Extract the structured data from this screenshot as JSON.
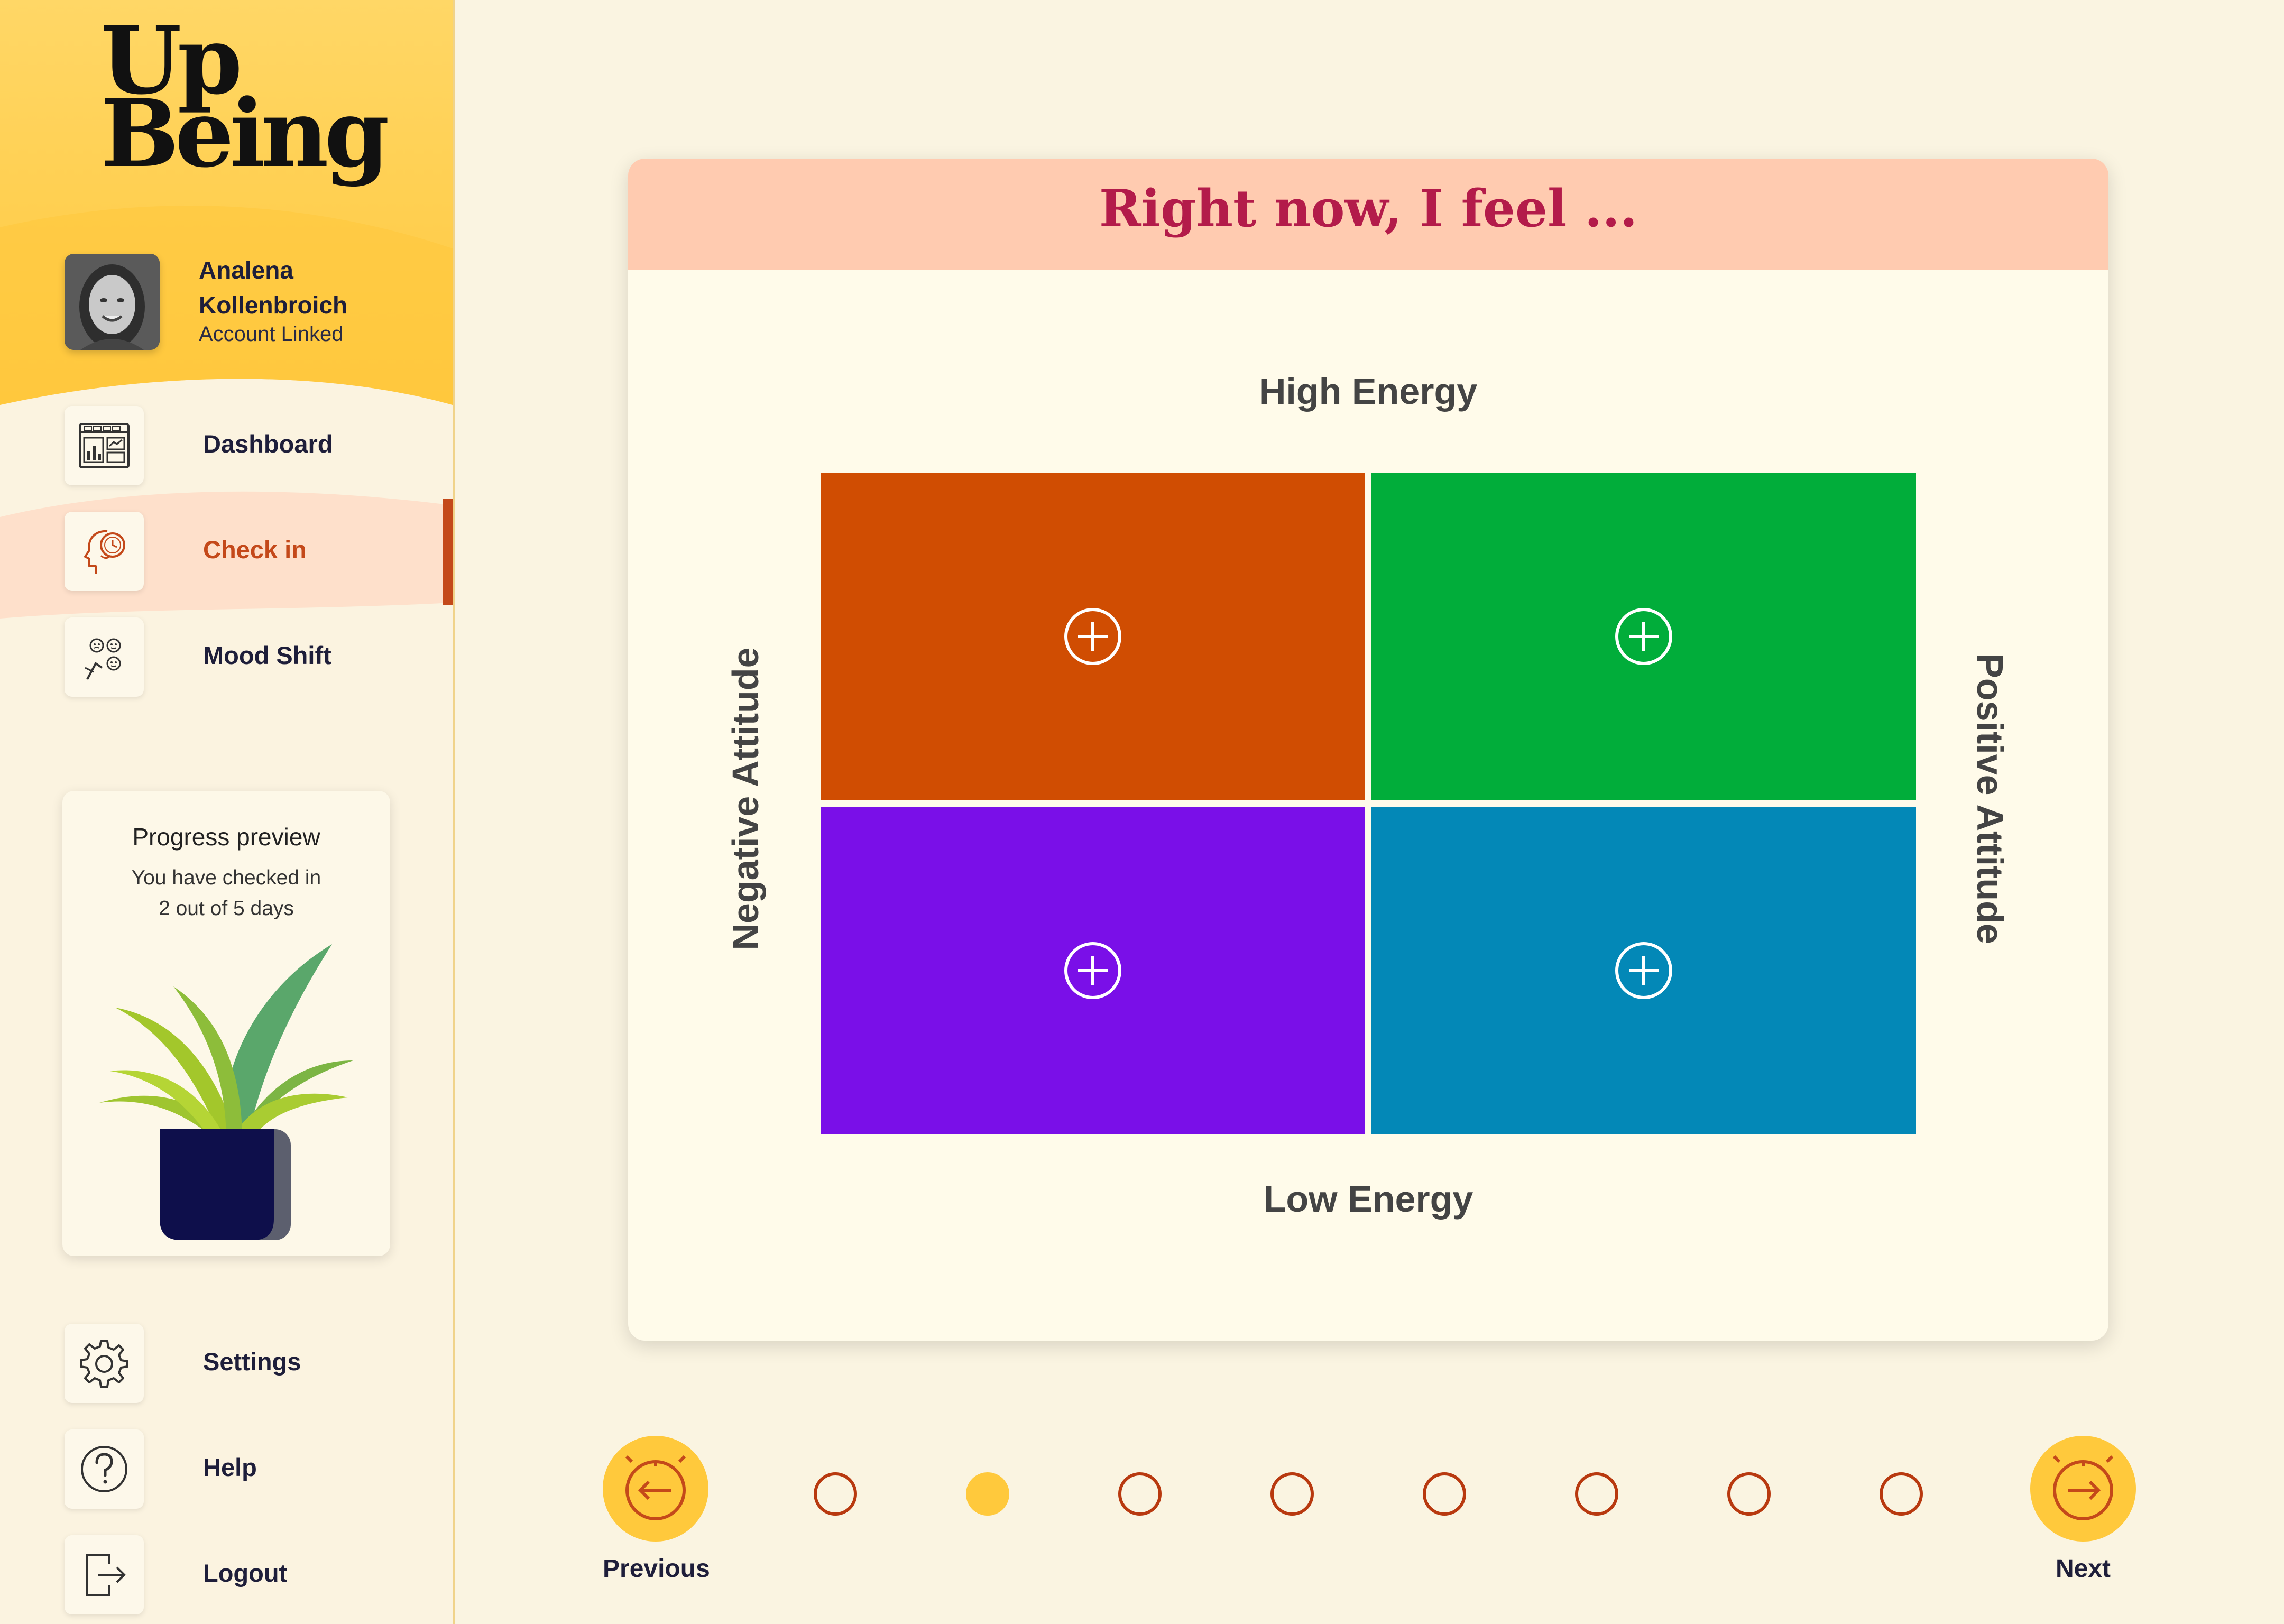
{
  "brand": {
    "logo_line1": "Up",
    "logo_line2": "Being"
  },
  "user": {
    "name": "Analena Kollenbroich",
    "status": "Account Linked"
  },
  "nav": {
    "items": [
      {
        "label": "Dashboard",
        "icon": "dashboard-icon",
        "active": false
      },
      {
        "label": "Check in",
        "icon": "head-clock-icon",
        "active": true
      },
      {
        "label": "Mood Shift",
        "icon": "mood-faces-icon",
        "active": false
      }
    ],
    "bottom_items": [
      {
        "label": "Settings",
        "icon": "gear-icon"
      },
      {
        "label": "Help",
        "icon": "question-icon"
      },
      {
        "label": "Logout",
        "icon": "logout-icon"
      }
    ]
  },
  "progress": {
    "title": "Progress preview",
    "text_line1": "You have checked in",
    "text_line2": "2 out of 5 days",
    "days_checked": 2,
    "days_total": 5
  },
  "mood_meter": {
    "title": "Right now, I feel ...",
    "top_label": "High Energy",
    "bottom_label": "Low Energy",
    "left_label": "Negative Attitude",
    "right_label": "Positive Attitude",
    "quadrants": [
      {
        "position": "high-negative",
        "color": "#d04d02",
        "icon": "plus-circle-icon"
      },
      {
        "position": "high-positive",
        "color": "#01ad3a",
        "icon": "plus-circle-icon"
      },
      {
        "position": "low-negative",
        "color": "#7a0fe8",
        "icon": "plus-circle-icon"
      },
      {
        "position": "low-positive",
        "color": "#0388b7",
        "icon": "plus-circle-icon"
      }
    ]
  },
  "pager": {
    "previous_label": "Previous",
    "next_label": "Next",
    "total_steps": 8,
    "current_step": 2
  },
  "colors": {
    "accent_yellow": "#ffc93c",
    "title_red": "#b31b4a",
    "active_orange": "#c4491a",
    "header_peach": "#ffcbb0"
  }
}
